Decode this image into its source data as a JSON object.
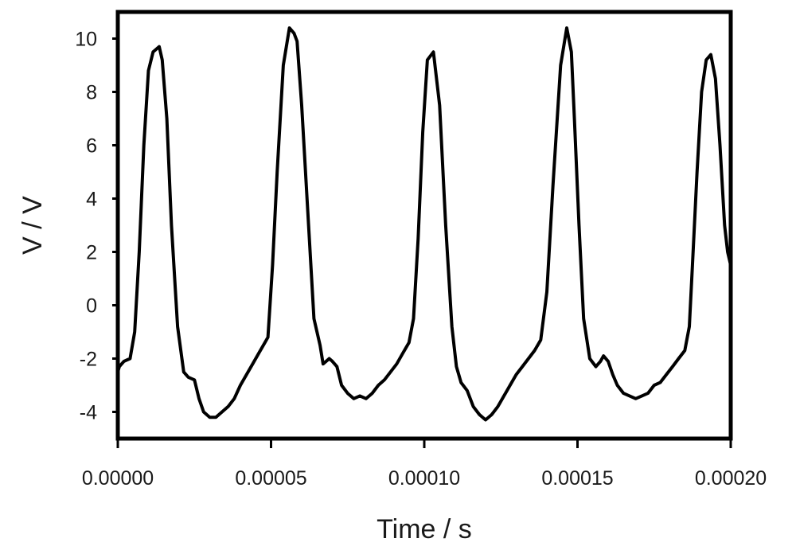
{
  "chart_data": {
    "type": "line",
    "title": "",
    "xlabel": "Time / s",
    "ylabel": "V / V",
    "xlim": [
      0,
      0.0002
    ],
    "ylim": [
      -5,
      11
    ],
    "grid": false,
    "legend": "none",
    "line_color": "#000000",
    "x_ticks": [
      {
        "value": 0,
        "label": "0.00000"
      },
      {
        "value": 5e-05,
        "label": "0.00005"
      },
      {
        "value": 0.0001,
        "label": "0.00010"
      },
      {
        "value": 0.00015,
        "label": "0.00015"
      },
      {
        "value": 0.0002,
        "label": "0.00020"
      }
    ],
    "y_ticks": [
      {
        "value": 10,
        "label": "10"
      },
      {
        "value": 8,
        "label": "8"
      },
      {
        "value": 6,
        "label": "6"
      },
      {
        "value": 4,
        "label": "4"
      },
      {
        "value": 2,
        "label": "2"
      },
      {
        "value": 0,
        "label": "0"
      },
      {
        "value": -2,
        "label": "-2"
      },
      {
        "value": -4,
        "label": "-4"
      }
    ],
    "series": [
      {
        "x": [
          0.0,
          5e-07,
          2e-06,
          4e-06,
          5.5e-06,
          7e-06,
          8.5e-06,
          1e-05,
          1.15e-05,
          1.35e-05,
          1.45e-05,
          1.6e-05,
          1.75e-05,
          1.95e-05,
          2.15e-05,
          2.3e-05,
          2.5e-05,
          2.65e-05,
          2.8e-05,
          3e-05,
          3.2e-05,
          3.4e-05,
          3.6e-05,
          3.8e-05,
          4e-05,
          4.2e-05,
          4.4e-05,
          4.6e-05,
          4.8e-05,
          4.9e-05,
          5.05e-05,
          5.2e-05,
          5.4e-05,
          5.6e-05,
          5.75e-05,
          5.85e-05,
          6e-05,
          6.2e-05,
          6.4e-05,
          6.6e-05,
          6.7e-05,
          6.8e-05,
          6.9e-05,
          7e-05,
          7.15e-05,
          7.3e-05,
          7.5e-05,
          7.7e-05,
          7.9e-05,
          8.1e-05,
          8.3e-05,
          8.5e-05,
          8.7e-05,
          8.9e-05,
          9.1e-05,
          9.3e-05,
          9.5e-05,
          9.65e-05,
          9.8e-05,
          9.95e-05,
          0.000101,
          0.000103,
          0.000105,
          0.000107,
          0.000109,
          0.0001105,
          0.000112,
          0.000114,
          0.000116,
          0.000118,
          0.00012,
          0.000122,
          0.000124,
          0.000126,
          0.000128,
          0.00013,
          0.000132,
          0.000134,
          0.000136,
          0.000138,
          0.00014,
          0.000142,
          0.0001445,
          0.0001465,
          0.000148,
          0.000149,
          0.0001505,
          0.000152,
          0.000154,
          0.000156,
          0.0001575,
          0.0001585,
          0.00016,
          0.0001615,
          0.000163,
          0.000165,
          0.000167,
          0.000169,
          0.000171,
          0.000173,
          0.000175,
          0.000177,
          0.000179,
          0.000181,
          0.000183,
          0.000185,
          0.0001865,
          0.0001875,
          0.000189,
          0.0001905,
          0.000192,
          0.0001935,
          0.000195,
          0.0001965,
          0.000198,
          0.000199,
          0.0002
        ],
        "y": [
          -2.5,
          -2.3,
          -2.1,
          -2.0,
          -1.0,
          2.0,
          6.0,
          8.8,
          9.5,
          9.7,
          9.2,
          7.0,
          3.0,
          -0.8,
          -2.5,
          -2.7,
          -2.8,
          -3.5,
          -4.0,
          -4.2,
          -4.2,
          -4.0,
          -3.8,
          -3.5,
          -3.0,
          -2.6,
          -2.2,
          -1.8,
          -1.4,
          -1.2,
          1.5,
          5.0,
          9.0,
          10.4,
          10.2,
          9.9,
          7.5,
          3.5,
          -0.5,
          -1.5,
          -2.2,
          -2.1,
          -2.0,
          -2.1,
          -2.3,
          -3.0,
          -3.3,
          -3.5,
          -3.4,
          -3.5,
          -3.3,
          -3.0,
          -2.8,
          -2.5,
          -2.2,
          -1.8,
          -1.4,
          -0.5,
          2.5,
          6.5,
          9.2,
          9.5,
          7.5,
          3.0,
          -0.8,
          -2.3,
          -2.9,
          -3.2,
          -3.8,
          -4.1,
          -4.3,
          -4.1,
          -3.8,
          -3.4,
          -3.0,
          -2.6,
          -2.3,
          -2.0,
          -1.7,
          -1.3,
          0.5,
          4.5,
          9.0,
          10.4,
          9.5,
          7.0,
          3.0,
          -0.5,
          -2.0,
          -2.3,
          -2.1,
          -1.9,
          -2.1,
          -2.6,
          -3.0,
          -3.3,
          -3.4,
          -3.5,
          -3.4,
          -3.3,
          -3.0,
          -2.9,
          -2.6,
          -2.3,
          -2.0,
          -1.7,
          -0.8,
          1.5,
          5.0,
          8.0,
          9.2,
          9.4,
          8.5,
          6.0,
          3.0,
          2.0,
          1.5
        ]
      }
    ]
  }
}
